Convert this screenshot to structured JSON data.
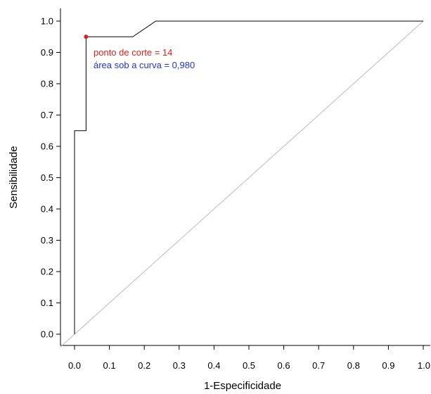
{
  "chart_data": {
    "type": "line",
    "title": "",
    "xlabel": "1-Especificidade",
    "ylabel": "Sensibilidade",
    "xlim": [
      0.0,
      1.0
    ],
    "ylim": [
      0.0,
      1.0
    ],
    "x_ticks": [
      "0.0",
      "0.1",
      "0.2",
      "0.3",
      "0.4",
      "0.5",
      "0.6",
      "0.7",
      "0.8",
      "0.9",
      "1.0"
    ],
    "y_ticks": [
      "0.0",
      "0.1",
      "0.2",
      "0.3",
      "0.4",
      "0.5",
      "0.6",
      "0.7",
      "0.8",
      "0.9",
      "1.0"
    ],
    "grid": false,
    "series": [
      {
        "color": "#000000",
        "x": [
          0.0,
          0.0,
          0.033,
          0.033,
          0.167,
          0.233,
          1.0
        ],
        "y": [
          0.0,
          0.65,
          0.65,
          0.95,
          0.95,
          1.0,
          1.0
        ]
      }
    ],
    "reference_line": {
      "x": [
        0.0,
        1.0
      ],
      "y": [
        0.0,
        1.0
      ],
      "color": "#bbbbbb"
    },
    "cutoff_point": {
      "x": 0.033,
      "y": 0.95,
      "color": "#e0201b"
    },
    "annotations": [
      {
        "text": "ponto de corte = 14",
        "color": "#e0201b"
      },
      {
        "text": "área sob a curva = 0,980",
        "color": "#1f32e6"
      }
    ]
  }
}
